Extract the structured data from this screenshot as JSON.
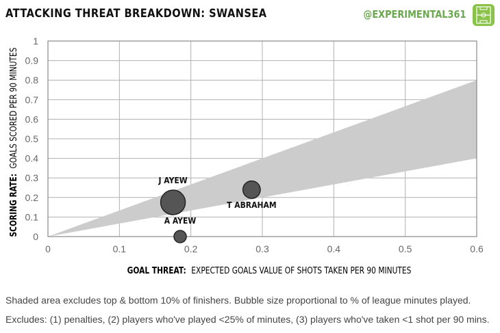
{
  "header": {
    "title": "ATTACKING THREAT BREAKDOWN:  SWANSEA",
    "handle": "@EXPERIMENTAL361"
  },
  "footnotes": [
    "Shaded area excludes top & bottom 10% of finishers. Bubble size proportional to % of league minutes played.",
    "Excludes: (1) penalties, (2) players who've played <25% of minutes, (3) players who've taken <1 shot per 90 mins."
  ],
  "colors": {
    "title": "#111111",
    "handle": "#6aa84f",
    "logo": "#8bc34a",
    "band": "#cccccc",
    "bubble": "#555555",
    "grid": "#b0b0b0"
  },
  "chart_data": {
    "type": "scatter",
    "title": "ATTACKING THREAT BREAKDOWN:  SWANSEA",
    "xlabel_bold": "GOAL THREAT:",
    "xlabel": "EXPECTED GOALS VALUE OF SHOTS TAKEN PER 90 MINUTES",
    "ylabel_bold": "SCORING RATE:",
    "ylabel": "GOALS SCORED PER 90 MINUTES",
    "xlim": [
      0,
      0.6
    ],
    "ylim": [
      0,
      1
    ],
    "xticks": [
      "0",
      "0.1",
      "0.2",
      "0.3",
      "0.4",
      "0.5",
      "0.6"
    ],
    "yticks": [
      "0",
      "0.1",
      "0.2",
      "0.3",
      "0.4",
      "0.5",
      "0.6",
      "0.7",
      "0.8",
      "0.9",
      "1"
    ],
    "grid": true,
    "band": {
      "lower_slope": 0.667,
      "upper_slope": 1.333
    },
    "points": [
      {
        "label": "J AYEW",
        "x": 0.175,
        "y": 0.175,
        "size": 1.0,
        "label_pos": "above"
      },
      {
        "label": "T ABRAHAM",
        "x": 0.285,
        "y": 0.24,
        "size": 0.5,
        "label_pos": "below"
      },
      {
        "label": "A AYEW",
        "x": 0.185,
        "y": 0.0,
        "size": 0.25,
        "label_pos": "above"
      }
    ]
  }
}
